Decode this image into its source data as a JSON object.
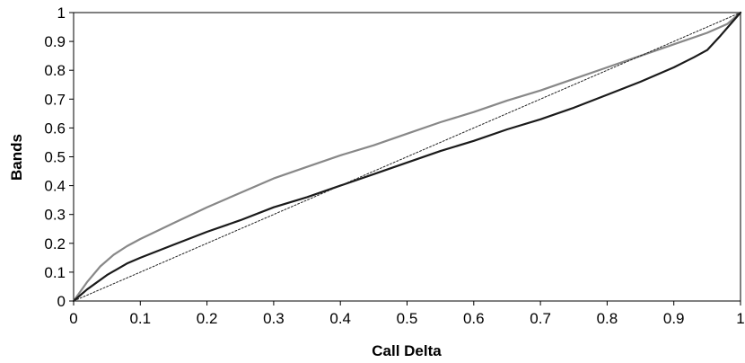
{
  "chart_data": {
    "type": "line",
    "title": "",
    "xlabel": "Call Delta",
    "ylabel": "Bands",
    "xlim": [
      0,
      1
    ],
    "ylim": [
      0,
      1
    ],
    "x_ticks": [
      "0",
      "0.1",
      "0.2",
      "0.3",
      "0.4",
      "0.5",
      "0.6",
      "0.7",
      "0.8",
      "0.9",
      "1"
    ],
    "y_ticks": [
      "0",
      "0.1",
      "0.2",
      "0.3",
      "0.4",
      "0.5",
      "0.6",
      "0.7",
      "0.8",
      "0.9",
      "1"
    ],
    "grid": false,
    "legend": "none",
    "series": [
      {
        "color": "#888888",
        "style": "solid",
        "x": [
          0,
          0.02,
          0.04,
          0.06,
          0.08,
          0.1,
          0.15,
          0.2,
          0.25,
          0.3,
          0.35,
          0.4,
          0.45,
          0.5,
          0.55,
          0.6,
          0.65,
          0.7,
          0.75,
          0.8,
          0.85,
          0.9,
          0.95,
          0.98,
          1.0
        ],
        "y": [
          0,
          0.065,
          0.12,
          0.16,
          0.19,
          0.215,
          0.27,
          0.325,
          0.375,
          0.425,
          0.465,
          0.505,
          0.54,
          0.58,
          0.62,
          0.655,
          0.695,
          0.73,
          0.77,
          0.81,
          0.85,
          0.89,
          0.93,
          0.96,
          1.0
        ]
      },
      {
        "color": "#1a1a1a",
        "style": "solid",
        "x": [
          0,
          0.02,
          0.05,
          0.08,
          0.1,
          0.15,
          0.2,
          0.25,
          0.3,
          0.35,
          0.4,
          0.45,
          0.5,
          0.55,
          0.6,
          0.65,
          0.7,
          0.75,
          0.8,
          0.85,
          0.9,
          0.93,
          0.95,
          0.97,
          1.0
        ],
        "y": [
          0,
          0.04,
          0.09,
          0.13,
          0.15,
          0.195,
          0.24,
          0.28,
          0.325,
          0.36,
          0.4,
          0.44,
          0.48,
          0.52,
          0.555,
          0.595,
          0.63,
          0.67,
          0.715,
          0.76,
          0.81,
          0.845,
          0.87,
          0.92,
          1.0
        ]
      },
      {
        "color": "#222222",
        "style": "dotted",
        "x": [
          0,
          1
        ],
        "y": [
          0,
          1
        ]
      }
    ]
  }
}
